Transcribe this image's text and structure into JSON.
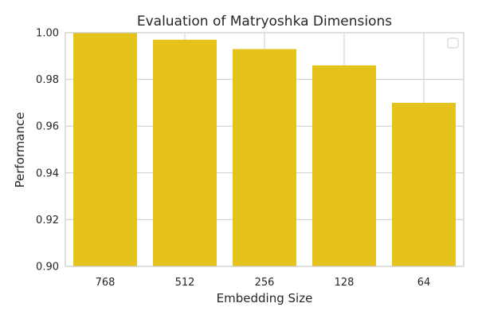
{
  "chart_data": {
    "type": "bar",
    "title": "Evaluation of Matryoshka Dimensions",
    "xlabel": "Embedding Size",
    "ylabel": "Performance",
    "categories": [
      "768",
      "512",
      "256",
      "128",
      "64"
    ],
    "values": [
      1.0,
      0.997,
      0.993,
      0.986,
      0.97
    ],
    "ylim": [
      0.9,
      1.0
    ],
    "yticks": [
      "0.90",
      "0.92",
      "0.94",
      "0.96",
      "0.98",
      "1.00"
    ],
    "grid": true,
    "legend": {
      "placement": "top-right",
      "entries": []
    },
    "colors": {
      "bar": "#e5c31c",
      "grid": "#cccccc",
      "text": "#262626"
    }
  }
}
